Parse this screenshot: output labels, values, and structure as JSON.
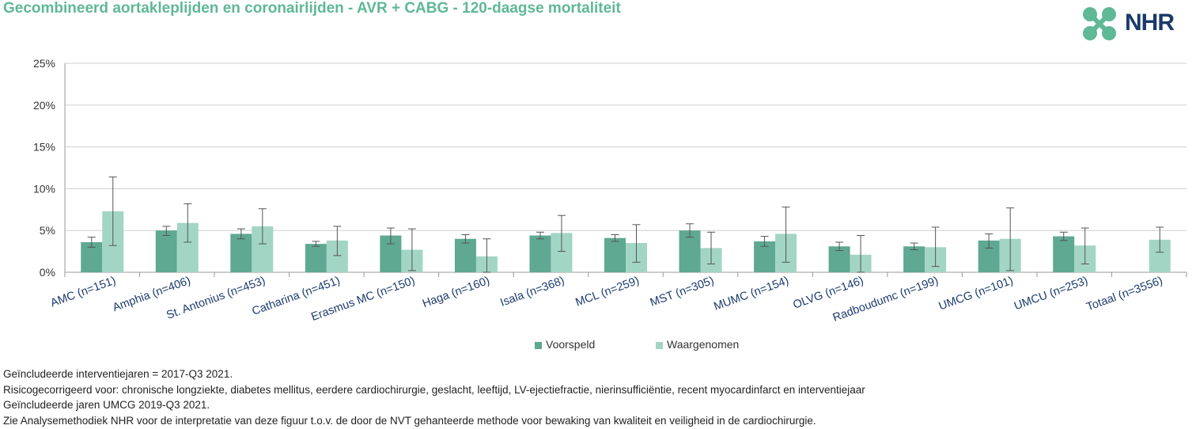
{
  "title": "Gecombineerd aortakleplijden en coronairlijden - AVR + CABG - 120-daagse mortaliteit",
  "logo": {
    "text": "NHR",
    "icon": "nhr-knot-icon",
    "colors": {
      "icon": "#5fb896",
      "text": "#1b3a6b"
    }
  },
  "chart_data": {
    "type": "bar",
    "categories": [
      "AMC (n=151)",
      "Amphia (n=406)",
      "St. Antonius (n=453)",
      "Catharina (n=451)",
      "Erasmus MC (n=150)",
      "Haga (n=160)",
      "Isala (n=368)",
      "MCL (n=259)",
      "MST (n=305)",
      "MUMC (n=154)",
      "OLVG (n=146)",
      "Radboudumc (n=199)",
      "UMCG (n=101)",
      "UMCU (n=253)",
      "Totaal (n=3556)"
    ],
    "series": [
      {
        "name": "Voorspeld",
        "color": "#5fa892",
        "values": [
          3.6,
          5.0,
          4.6,
          3.4,
          4.4,
          4.0,
          4.4,
          4.1,
          5.0,
          3.7,
          3.1,
          3.1,
          3.8,
          4.3,
          null
        ],
        "ci_low": [
          3.0,
          4.4,
          4.0,
          3.1,
          3.4,
          3.5,
          4.0,
          3.7,
          4.2,
          3.1,
          2.6,
          2.7,
          2.9,
          3.8,
          null
        ],
        "ci_high": [
          4.2,
          5.5,
          5.2,
          3.7,
          5.3,
          4.5,
          4.8,
          4.5,
          5.8,
          4.3,
          3.6,
          3.5,
          4.6,
          4.8,
          null
        ]
      },
      {
        "name": "Waargenomen",
        "color": "#a3d5c5",
        "values": [
          7.3,
          5.9,
          5.5,
          3.8,
          2.7,
          1.9,
          4.7,
          3.5,
          2.9,
          4.6,
          2.1,
          3.0,
          4.0,
          3.2,
          3.9
        ],
        "ci_low": [
          3.2,
          3.6,
          3.4,
          2.0,
          0.2,
          0.0,
          2.5,
          1.2,
          1.0,
          1.2,
          0.0,
          0.7,
          0.2,
          1.0,
          2.4
        ],
        "ci_high": [
          11.4,
          8.2,
          7.6,
          5.5,
          5.2,
          4.0,
          6.8,
          5.7,
          4.8,
          7.8,
          4.4,
          5.4,
          7.7,
          5.3,
          5.4
        ]
      }
    ],
    "ylim": [
      0,
      25
    ],
    "yticks": [
      0,
      5,
      10,
      15,
      20,
      25
    ],
    "ytick_labels": [
      "0%",
      "5%",
      "10%",
      "15%",
      "20%",
      "25%"
    ],
    "grid": true,
    "legend_position": "bottom"
  },
  "footnotes": [
    "Geïncludeerde interventiejaren = 2017-Q3 2021.",
    "Risicogecorrigeerd voor: chronische longziekte, diabetes mellitus, eerdere cardiochirurgie, geslacht, leeftijd, LV-ejectiefractie, nierinsufficiëntie, recent myocardinfarct en interventiejaar",
    "Geïncludeerde jaren UMCG 2019-Q3 2021.",
    "Zie Analysemethodiek NHR voor de interpretatie van deze figuur t.o.v. de door de NVT gehanteerde methode voor bewaking van kwaliteit en veiligheid in de cardiochirurgie."
  ]
}
